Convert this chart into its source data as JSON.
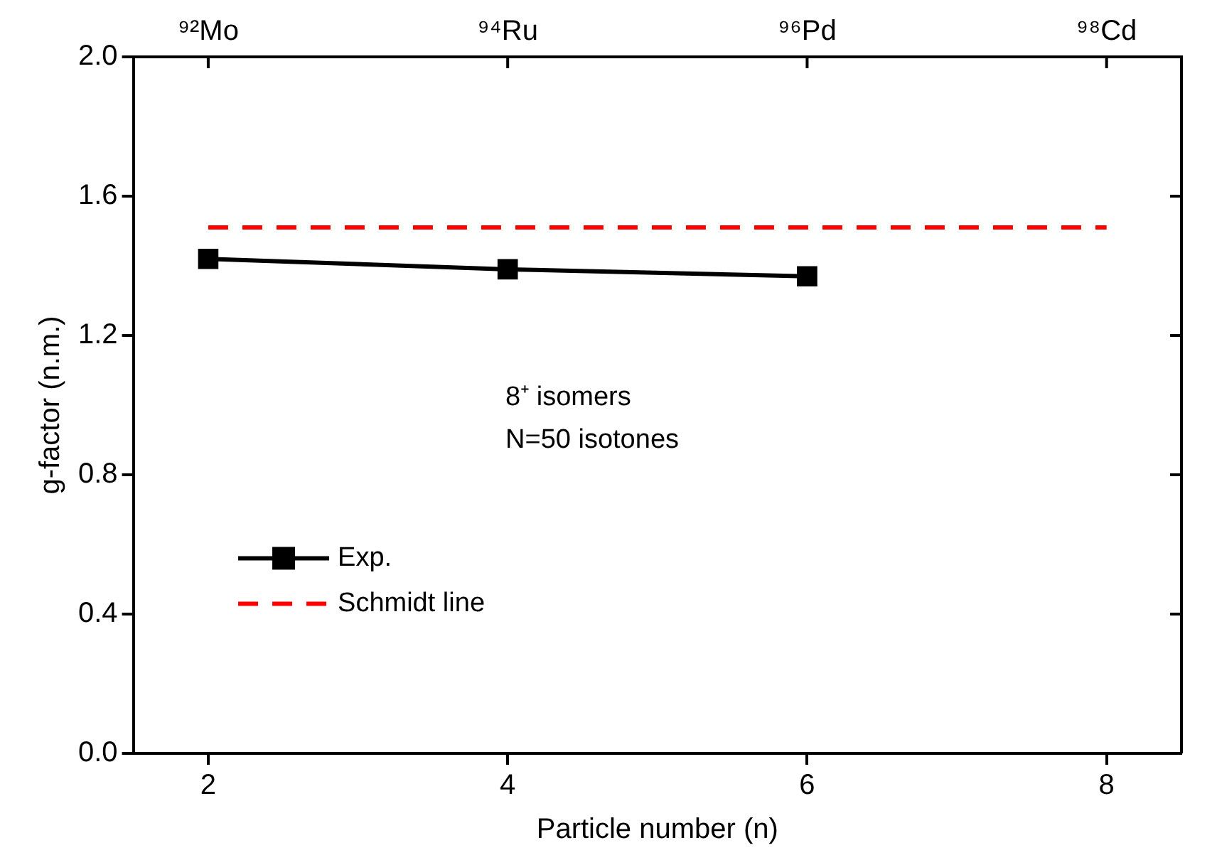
{
  "chart_data": {
    "type": "line",
    "xlabel": "Particle number (n)",
    "ylabel": "g-factor (n.m.)",
    "xlim": [
      1.5,
      8.5
    ],
    "xticks": [
      2,
      4,
      6,
      8
    ],
    "ylim": [
      0,
      2
    ],
    "yticks": [
      {
        "value": 0,
        "label": "0.0"
      },
      0.4,
      0.8,
      1.2,
      1.6,
      {
        "value": 2,
        "label": "2.0"
      }
    ],
    "grid": false,
    "legend": "bottom left",
    "annotations": [
      "⁹²Mo",
      "⁹⁴Ru",
      "⁹⁶Pd",
      "⁹⁸Cd",
      "8⁺ isomers",
      "N=50 isotones"
    ],
    "series": [
      {
        "name": "Exp.",
        "color": "#000000",
        "x": [
          2,
          4,
          6
        ],
        "values": [
          1.42,
          1.39,
          1.37
        ],
        "marker": "square",
        "line_style": "solid"
      },
      {
        "name": "Schmidt line",
        "color": "#ff0000",
        "x": [
          2,
          8
        ],
        "values": [
          1.51,
          1.51
        ],
        "marker": "none",
        "line_style": "dashed"
      }
    ]
  }
}
